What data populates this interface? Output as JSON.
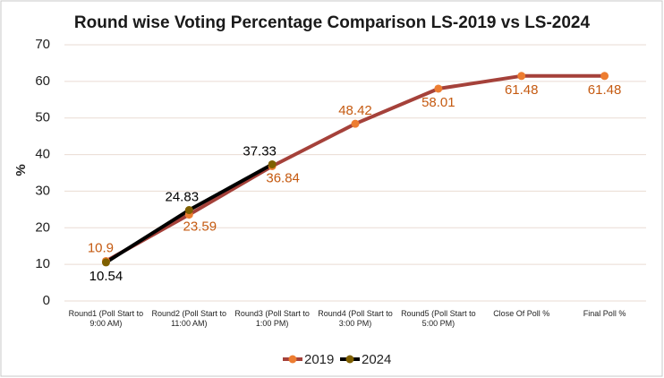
{
  "chart_data": {
    "type": "line",
    "title": "Round wise Voting Percentage Comparison LS-2019 vs LS-2024",
    "y_label": "%",
    "categories": [
      "Round1 (Poll Start to 9:00 AM)",
      "Round2 (Poll Start to 11:00 AM)",
      "Round3 (Poll Start to 1:00 PM)",
      "Round4 (Poll Start to 3:00 PM)",
      "Round5 (Poll Start to 5:00 PM)",
      "Close Of Poll %",
      "Final Poll %"
    ],
    "series": [
      {
        "name": "2019",
        "color": "#a5413a",
        "marker_color": "#ed7d31",
        "label_color": "#c55a11",
        "values": [
          10.9,
          23.59,
          36.84,
          48.42,
          58.01,
          61.48,
          61.48
        ]
      },
      {
        "name": "2024",
        "color": "#000000",
        "marker_color": "#7f6000",
        "label_color": "#000000",
        "values": [
          10.54,
          24.83,
          37.33,
          null,
          null,
          null,
          null
        ]
      }
    ],
    "ylim": [
      0,
      70
    ],
    "yticks": [
      0,
      10,
      20,
      30,
      40,
      50,
      60,
      70
    ],
    "grid": true,
    "legend": "bottom"
  }
}
